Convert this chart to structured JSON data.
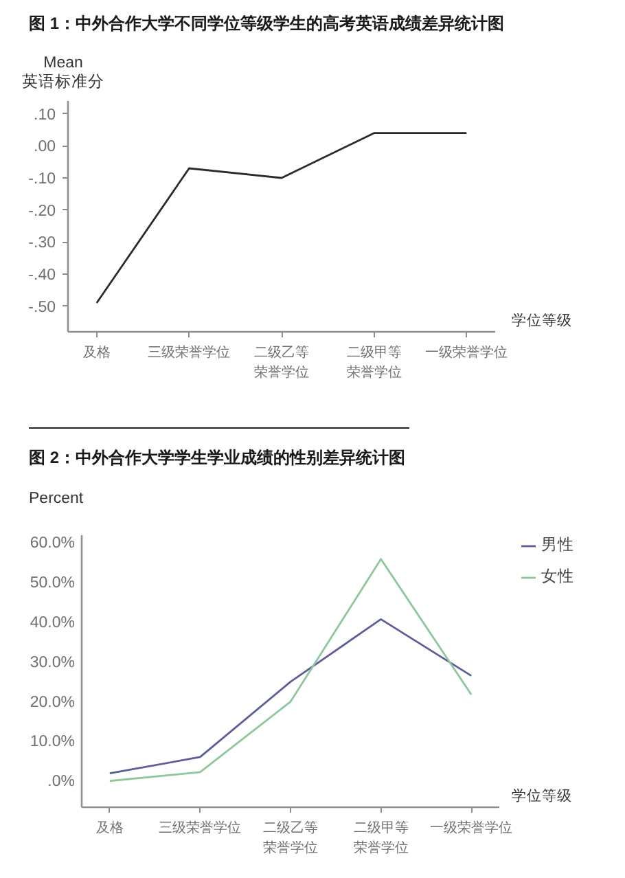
{
  "chart_data": [
    {
      "type": "line",
      "title": "图 1：中外合作大学不同学位等级学生的高考英语成绩差异统计图",
      "ylabel": "Mean\n英语标准分",
      "xlabel": "学位等级",
      "categories": [
        "及格",
        "三级荣誉学位",
        "二级乙等荣誉学位",
        "二级甲等荣誉学位",
        "一级荣誉学位"
      ],
      "series": [
        {
          "color": "#2b2b2b",
          "values": [
            -0.49,
            -0.07,
            -0.1,
            0.04,
            0.04
          ]
        }
      ],
      "ylim": [
        -0.58,
        0.14
      ],
      "yticks": [
        {
          "value": 0.1,
          "label": ".10"
        },
        {
          "value": 0,
          "label": ".00"
        },
        {
          "value": -0.1,
          "label": "-.10"
        },
        {
          "value": -0.2,
          "label": "-.20"
        },
        {
          "value": -0.3,
          "label": "-.30"
        },
        {
          "value": -0.4,
          "label": "-.40"
        },
        {
          "value": -0.5,
          "label": "-.50"
        }
      ]
    },
    {
      "type": "line",
      "title": "图 2：中外合作大学学生学业成绩的性别差异统计图",
      "ylabel": "Percent",
      "xlabel": "学位等级",
      "categories": [
        "及格",
        "三级荣誉学位",
        "二级乙等荣誉学位",
        "二级甲等荣誉学位",
        "一级荣誉学位"
      ],
      "series": [
        {
          "name": "男性",
          "color": "#5d5d98",
          "values": [
            2.2,
            6.3,
            25.2,
            40.9,
            26.7
          ]
        },
        {
          "name": "女性",
          "color": "#8ec79b",
          "values": [
            0.3,
            2.5,
            20.2,
            56.0,
            22.0
          ]
        }
      ],
      "ylim": [
        -6.3,
        62
      ],
      "yticks": [
        {
          "value": 0,
          "label": ".0%"
        },
        {
          "value": 10,
          "label": "10.0%"
        },
        {
          "value": 20,
          "label": "20.0%"
        },
        {
          "value": 30,
          "label": "30.0%"
        },
        {
          "value": 40,
          "label": "40.0%"
        },
        {
          "value": 50,
          "label": "50.0%"
        },
        {
          "value": 60,
          "label": "60.0%"
        }
      ],
      "legend": "top right"
    }
  ]
}
